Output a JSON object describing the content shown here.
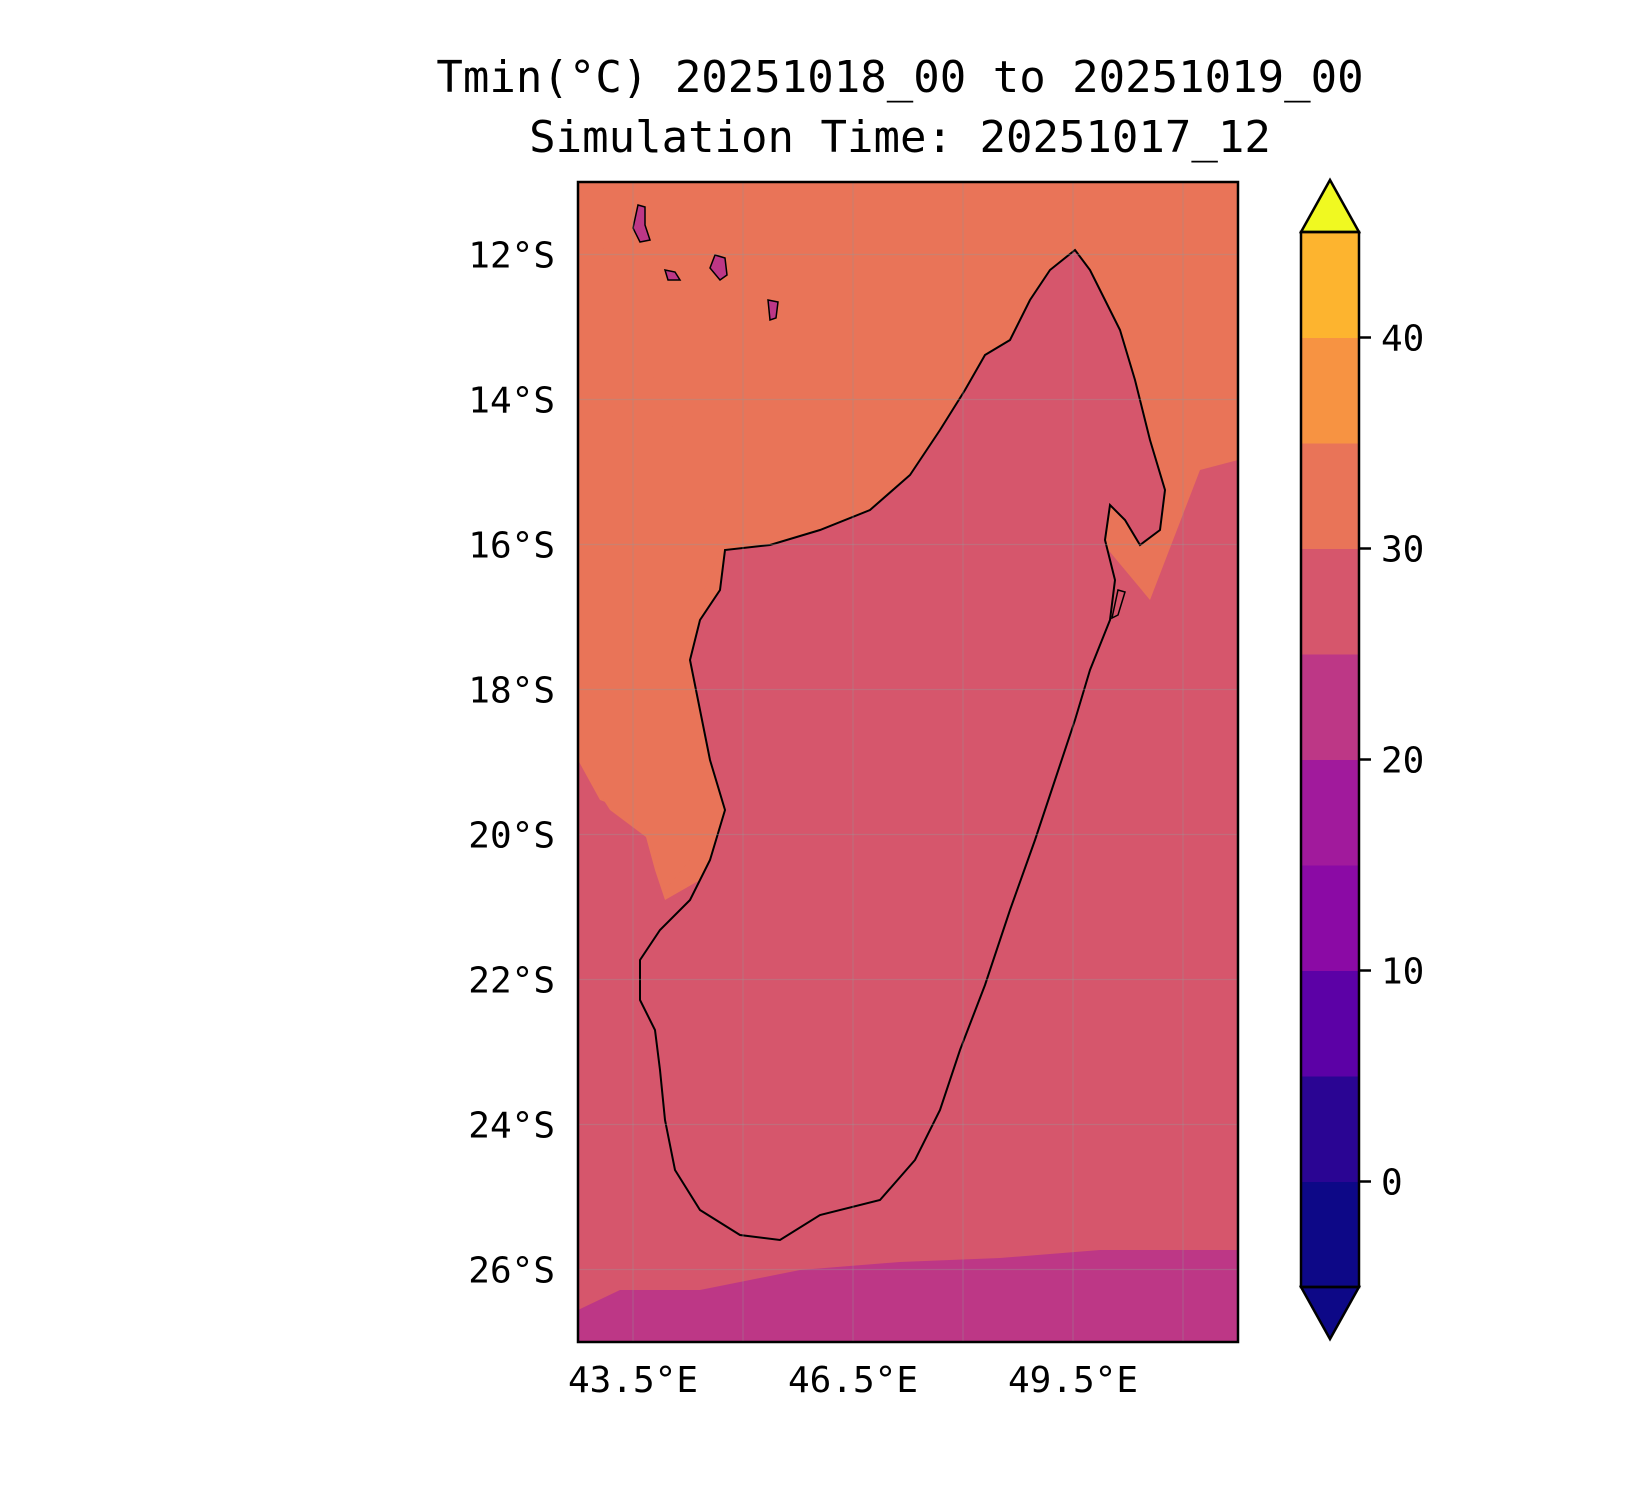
{
  "title": "Tmin(°C) 20251018_00 to 20251019_00",
  "subtitle": "Simulation Time: 20251017_12",
  "map": {
    "region": "Madagascar",
    "lon_range": [
      42.75,
      51.75
    ],
    "lat_range": [
      -27.0,
      -11.0
    ],
    "lat_ticks": [
      {
        "value": -12,
        "label": "12°S"
      },
      {
        "value": -14,
        "label": "14°S"
      },
      {
        "value": -16,
        "label": "16°S"
      },
      {
        "value": -18,
        "label": "18°S"
      },
      {
        "value": -20,
        "label": "20°S"
      },
      {
        "value": -22,
        "label": "22°S"
      },
      {
        "value": -24,
        "label": "24°S"
      },
      {
        "value": -26,
        "label": "26°S"
      }
    ],
    "lon_ticks": [
      {
        "value": 43.5,
        "label": "43.5°E"
      },
      {
        "value": 46.5,
        "label": "46.5°E"
      },
      {
        "value": 49.5,
        "label": "49.5°E"
      }
    ],
    "gridlines": true,
    "colors": {
      "ocean_warm": "#e97458",
      "ocean_mild": "#d6566c",
      "land_lowland": "#d6566c",
      "land_mid": "#bd3786",
      "land_high": "#a11a9c",
      "land_peak": "#8b0aa5",
      "coast": "#000000"
    }
  },
  "colorbar": {
    "colormap": "plasma",
    "levels": [
      -5,
      0,
      5,
      10,
      15,
      20,
      25,
      30,
      35,
      40,
      45
    ],
    "extend": "both",
    "colors": [
      "#0d0887",
      "#2a0593",
      "#5c01a6",
      "#8b0aa5",
      "#a11a9c",
      "#bd3786",
      "#d6566c",
      "#e97458",
      "#f79342",
      "#fdb42f",
      "#f0f921"
    ],
    "ticks": [
      {
        "value": 0,
        "label": "0"
      },
      {
        "value": 10,
        "label": "10"
      },
      {
        "value": 20,
        "label": "20"
      },
      {
        "value": 30,
        "label": "30"
      },
      {
        "value": 40,
        "label": "40"
      }
    ]
  }
}
